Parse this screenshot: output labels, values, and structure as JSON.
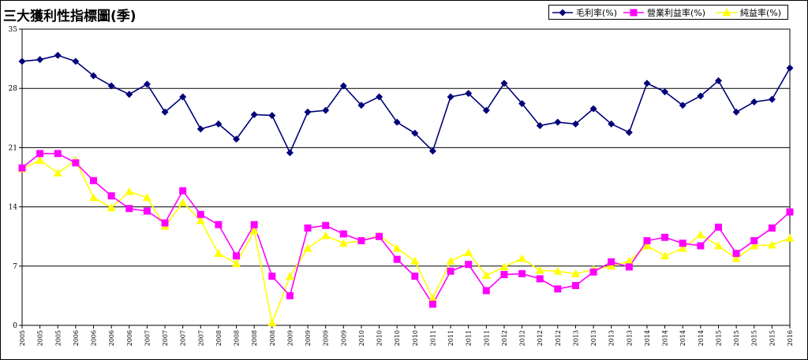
{
  "chart_data": {
    "type": "line",
    "title": "三大獲利性指標圖(季)",
    "xlabel": "",
    "ylabel": "",
    "ylim": [
      0,
      35
    ],
    "yticks": [
      0,
      7,
      14,
      21,
      28,
      35
    ],
    "grid": "horizontal",
    "legend_position": "top-right",
    "categories": [
      "2005",
      "2005",
      "2005",
      "2006",
      "2006",
      "2006",
      "2006",
      "2007",
      "2007",
      "2007",
      "2007",
      "2008",
      "2008",
      "2008",
      "2008",
      "2009",
      "2009",
      "2009",
      "2009",
      "2010",
      "2010",
      "2010",
      "2010",
      "2011",
      "2011",
      "2011",
      "2011",
      "2012",
      "2012",
      "2012",
      "2012",
      "2013",
      "2013",
      "2013",
      "2013",
      "2014",
      "2014",
      "2014",
      "2014",
      "2015",
      "2015",
      "2015",
      "2015",
      "2016"
    ],
    "series": [
      {
        "name": "毛利率(%)",
        "color": "#00007a",
        "marker": "diamond",
        "values": [
          31.2,
          31.4,
          31.9,
          31.2,
          29.5,
          28.3,
          27.3,
          28.5,
          25.2,
          27,
          23.2,
          23.8,
          22,
          24.9,
          24.8,
          20.4,
          25.2,
          25.4,
          28.3,
          26,
          27,
          24,
          22.7,
          20.6,
          27,
          27.4,
          25.4,
          28.6,
          26.2,
          23.6,
          24,
          23.8,
          25.6,
          23.8,
          22.8,
          28.6,
          27.6,
          26,
          27.1,
          28.9,
          25.2,
          26.4,
          26.7,
          30.4
        ]
      },
      {
        "name": "營業利益率(%)",
        "color": "#ff00ff",
        "marker": "square",
        "values": [
          18.6,
          20.3,
          20.3,
          19.2,
          17.1,
          15.3,
          13.8,
          13.5,
          12.1,
          15.9,
          13.1,
          11.9,
          8.2,
          11.9,
          5.8,
          3.5,
          11.5,
          11.8,
          10.8,
          10,
          10.5,
          7.8,
          5.8,
          2.5,
          6.4,
          7.2,
          4.1,
          6,
          6.1,
          5.5,
          4.3,
          4.7,
          6.3,
          7.5,
          6.9,
          10,
          10.4,
          9.7,
          9.4,
          11.6,
          8.5,
          10,
          11.5,
          13.4
        ]
      },
      {
        "name": "純益率(%)",
        "color": "#ffff00",
        "marker": "triangle",
        "values": [
          18.5,
          19.5,
          18,
          19.5,
          15.1,
          13.9,
          15.8,
          15.1,
          11.7,
          14.5,
          12.4,
          8.5,
          7.3,
          11.2,
          0.3,
          5.8,
          9.1,
          10.6,
          9.7,
          10,
          10.6,
          9.1,
          7.6,
          3.2,
          7.6,
          8.6,
          5.9,
          6.9,
          7.9,
          6.5,
          6.4,
          6.1,
          6.6,
          7,
          7.6,
          9.4,
          8.2,
          9.1,
          10.7,
          9.4,
          7.9,
          9.4,
          9.5,
          10.3
        ]
      }
    ]
  }
}
